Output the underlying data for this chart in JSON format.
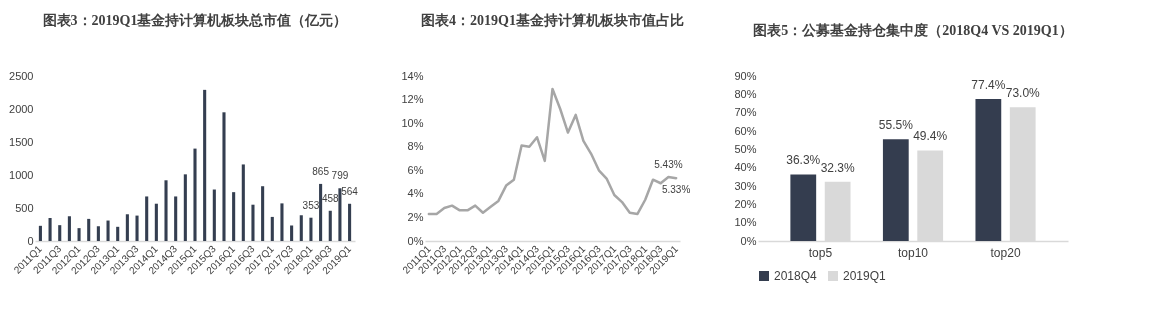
{
  "chart_data": [
    {
      "type": "bar",
      "title": "图表3：2019Q1基金持计算机板块总市值（亿元）",
      "categories": [
        "2011Q1",
        null,
        "2011Q3",
        null,
        "2012Q1",
        null,
        "2012Q3",
        null,
        "2013Q1",
        null,
        "2013Q3",
        null,
        "2014Q1",
        null,
        "2014Q3",
        null,
        "2015Q1",
        null,
        "2015Q3",
        null,
        "2016Q1",
        null,
        "2016Q3",
        null,
        "2017Q1",
        null,
        "2017Q3",
        null,
        "2018Q1",
        null,
        "2018Q3",
        null,
        "2019Q1"
      ],
      "values": [
        230,
        350,
        240,
        375,
        195,
        335,
        225,
        310,
        215,
        405,
        385,
        675,
        565,
        920,
        675,
        1010,
        1400,
        2290,
        780,
        1950,
        740,
        1160,
        550,
        830,
        365,
        570,
        235,
        390,
        353,
        865,
        458,
        799,
        564
      ],
      "value_labels": [
        null,
        null,
        null,
        null,
        null,
        null,
        null,
        null,
        null,
        null,
        null,
        null,
        null,
        null,
        null,
        null,
        null,
        null,
        null,
        null,
        null,
        null,
        null,
        null,
        null,
        null,
        null,
        null,
        "353",
        "865",
        "458",
        "799",
        "564"
      ],
      "color": "#343e50",
      "ylim": [
        0,
        2500
      ],
      "yticks": [
        0,
        500,
        1000,
        1500,
        2000,
        2500
      ]
    },
    {
      "type": "line",
      "title": "图表4：2019Q1基金持计算机板块市值占比",
      "categories": [
        "2011Q1",
        null,
        "2011Q3",
        null,
        "2012Q1",
        null,
        "2012Q3",
        null,
        "2013Q1",
        null,
        "2013Q3",
        null,
        "2014Q1",
        null,
        "2014Q3",
        null,
        "2015Q1",
        null,
        "2015Q3",
        null,
        "2016Q1",
        null,
        "2016Q3",
        null,
        "2017Q1",
        null,
        "2017Q3",
        null,
        "2018Q1",
        null,
        "2018Q3",
        null,
        "2019Q1"
      ],
      "values": [
        2.3,
        2.3,
        2.8,
        3.0,
        2.6,
        2.6,
        3.0,
        2.4,
        2.9,
        3.4,
        4.7,
        5.2,
        8.1,
        8.0,
        8.8,
        6.8,
        12.9,
        11.2,
        9.2,
        10.7,
        8.5,
        7.4,
        6.0,
        5.3,
        3.9,
        3.3,
        2.4,
        2.3,
        3.5,
        5.2,
        4.9,
        5.43,
        5.33
      ],
      "value_labels": [
        null,
        null,
        null,
        null,
        null,
        null,
        null,
        null,
        null,
        null,
        null,
        null,
        null,
        null,
        null,
        null,
        null,
        null,
        null,
        null,
        null,
        null,
        null,
        null,
        null,
        null,
        null,
        null,
        null,
        null,
        null,
        "5.43%",
        "5.33%"
      ],
      "color": "#a6a6a6",
      "ylim": [
        0,
        14
      ],
      "yticks": [
        {
          "value": 0,
          "label": "0%"
        },
        {
          "value": 2,
          "label": "2%"
        },
        {
          "value": 4,
          "label": "4%"
        },
        {
          "value": 6,
          "label": "6%"
        },
        {
          "value": 8,
          "label": "8%"
        },
        {
          "value": 10,
          "label": "10%"
        },
        {
          "value": 12,
          "label": "12%"
        },
        {
          "value": 14,
          "label": "14%"
        }
      ]
    },
    {
      "type": "bar",
      "title": "图表5：公募基金持仓集中度（2018Q4 VS 2019Q1）",
      "categories": [
        "top5",
        "top10",
        "top20"
      ],
      "series": [
        {
          "name": "2018Q4",
          "color": "#343d4f",
          "values": [
            36.3,
            55.5,
            77.4
          ],
          "value_labels": [
            "36.3%",
            "55.5%",
            "77.4%"
          ]
        },
        {
          "name": "2019Q1",
          "color": "#d9d9d9",
          "values": [
            32.3,
            49.4,
            73.0
          ],
          "value_labels": [
            "32.3%",
            "49.4%",
            "73.0%"
          ]
        }
      ],
      "ylim": [
        0,
        90
      ],
      "yticks": [
        {
          "value": 0,
          "label": "0%"
        },
        {
          "value": 10,
          "label": "10%"
        },
        {
          "value": 20,
          "label": "20%"
        },
        {
          "value": 30,
          "label": "30%"
        },
        {
          "value": 40,
          "label": "40%"
        },
        {
          "value": 50,
          "label": "50%"
        },
        {
          "value": 60,
          "label": "60%"
        },
        {
          "value": 70,
          "label": "70%"
        },
        {
          "value": 80,
          "label": "80%"
        },
        {
          "value": 90,
          "label": "90%"
        }
      ],
      "legend": "bottom"
    }
  ]
}
